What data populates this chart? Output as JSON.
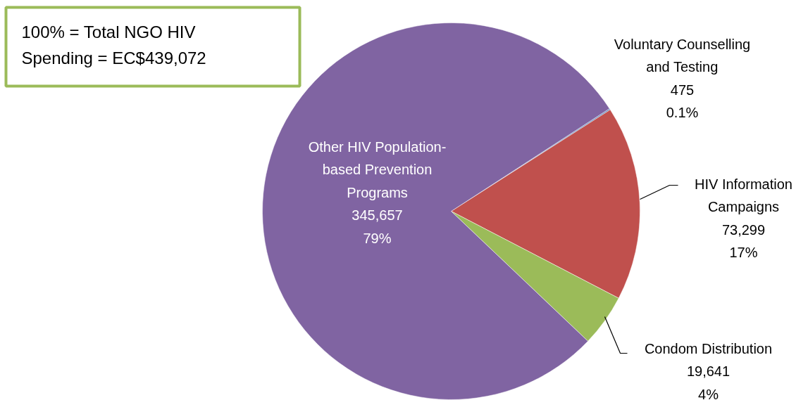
{
  "chart_data": {
    "type": "pie",
    "categories": [
      "Voluntary Counselling and Testing",
      "HIV Information Campaigns",
      "Condom Distribution",
      "Other HIV Population-based Prevention Programs"
    ],
    "values": [
      475,
      73299,
      19641,
      345657
    ],
    "colors": [
      "#4f81bd",
      "#c0504d",
      "#9bbb59",
      "#8064a2"
    ],
    "value_labels": [
      "475\n0.1%",
      "73,299\n17%",
      "19,641\n4%",
      "345,657\n79%"
    ],
    "annotations": [
      "100% = Total NGO HIV\nSpending = EC$439,072"
    ]
  }
}
